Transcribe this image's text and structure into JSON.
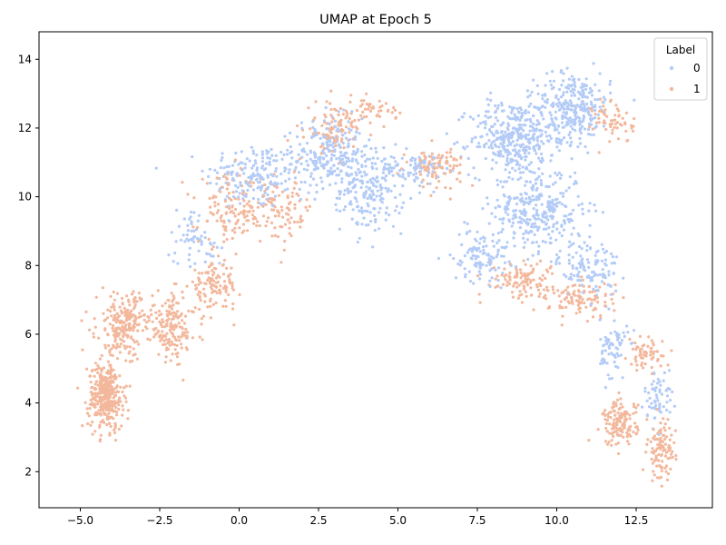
{
  "chart_data": {
    "type": "scatter",
    "title": "UMAP at Epoch 5",
    "xlabel": "",
    "ylabel": "",
    "xlim": [
      -6.3,
      14.9
    ],
    "ylim": [
      0.95,
      14.8
    ],
    "xticks": [
      -5.0,
      -2.5,
      0.0,
      2.5,
      5.0,
      7.5,
      10.0,
      12.5
    ],
    "xtick_labels": [
      "−5.0",
      "−2.5",
      "0.0",
      "2.5",
      "5.0",
      "7.5",
      "10.0",
      "12.5"
    ],
    "yticks": [
      2,
      4,
      6,
      8,
      10,
      12,
      14
    ],
    "ytick_labels": [
      "2",
      "4",
      "6",
      "8",
      "10",
      "12",
      "14"
    ],
    "grid": false,
    "legend": {
      "title": "Label",
      "placement": "top-right",
      "entries": [
        "0",
        "1"
      ]
    },
    "series": [
      {
        "name": "0",
        "color": "#b3cbf7",
        "regions": [
          {
            "center": [
              0.5,
              10.6
            ],
            "spread": [
              1.4,
              0.9
            ],
            "weight": 180
          },
          {
            "center": [
              2.8,
              11.2
            ],
            "spread": [
              1.0,
              1.0
            ],
            "weight": 240
          },
          {
            "center": [
              4.2,
              10.2
            ],
            "spread": [
              0.9,
              1.1
            ],
            "weight": 200
          },
          {
            "center": [
              5.6,
              10.8
            ],
            "spread": [
              0.7,
              0.4
            ],
            "weight": 70
          },
          {
            "center": [
              8.6,
              11.7
            ],
            "spread": [
              1.2,
              1.0
            ],
            "weight": 340
          },
          {
            "center": [
              10.5,
              12.6
            ],
            "spread": [
              1.1,
              0.9
            ],
            "weight": 300
          },
          {
            "center": [
              9.4,
              9.6
            ],
            "spread": [
              1.3,
              1.1
            ],
            "weight": 320
          },
          {
            "center": [
              7.6,
              8.3
            ],
            "spread": [
              0.8,
              0.7
            ],
            "weight": 110
          },
          {
            "center": [
              11.0,
              7.9
            ],
            "spread": [
              0.9,
              0.8
            ],
            "weight": 120
          },
          {
            "center": [
              11.8,
              5.6
            ],
            "spread": [
              0.4,
              0.8
            ],
            "weight": 70
          },
          {
            "center": [
              13.2,
              4.2
            ],
            "spread": [
              0.4,
              0.7
            ],
            "weight": 60
          },
          {
            "center": [
              -1.4,
              8.8
            ],
            "spread": [
              0.8,
              0.8
            ],
            "weight": 60
          }
        ]
      },
      {
        "name": "1",
        "color": "#f3b89c",
        "regions": [
          {
            "center": [
              -4.2,
              4.2
            ],
            "spread": [
              0.5,
              0.9
            ],
            "weight": 360
          },
          {
            "center": [
              -3.6,
              6.3
            ],
            "spread": [
              0.8,
              0.8
            ],
            "weight": 220
          },
          {
            "center": [
              -2.1,
              6.2
            ],
            "spread": [
              0.7,
              0.9
            ],
            "weight": 160
          },
          {
            "center": [
              -0.8,
              7.4
            ],
            "spread": [
              0.7,
              0.6
            ],
            "weight": 110
          },
          {
            "center": [
              -0.3,
              9.6
            ],
            "spread": [
              0.9,
              0.9
            ],
            "weight": 110
          },
          {
            "center": [
              1.2,
              9.6
            ],
            "spread": [
              1.1,
              0.8
            ],
            "weight": 110
          },
          {
            "center": [
              3.0,
              12.0
            ],
            "spread": [
              0.8,
              0.7
            ],
            "weight": 100
          },
          {
            "center": [
              4.3,
              12.5
            ],
            "spread": [
              0.6,
              0.3
            ],
            "weight": 40
          },
          {
            "center": [
              6.2,
              10.9
            ],
            "spread": [
              0.8,
              0.5
            ],
            "weight": 90
          },
          {
            "center": [
              8.9,
              7.6
            ],
            "spread": [
              1.0,
              0.5
            ],
            "weight": 110
          },
          {
            "center": [
              10.8,
              7.0
            ],
            "spread": [
              0.9,
              0.5
            ],
            "weight": 100
          },
          {
            "center": [
              11.8,
              12.2
            ],
            "spread": [
              0.6,
              0.6
            ],
            "weight": 60
          },
          {
            "center": [
              12.0,
              3.4
            ],
            "spread": [
              0.5,
              0.6
            ],
            "weight": 140
          },
          {
            "center": [
              13.3,
              2.6
            ],
            "spread": [
              0.4,
              0.8
            ],
            "weight": 100
          },
          {
            "center": [
              12.8,
              5.4
            ],
            "spread": [
              0.5,
              0.4
            ],
            "weight": 60
          }
        ]
      }
    ]
  }
}
